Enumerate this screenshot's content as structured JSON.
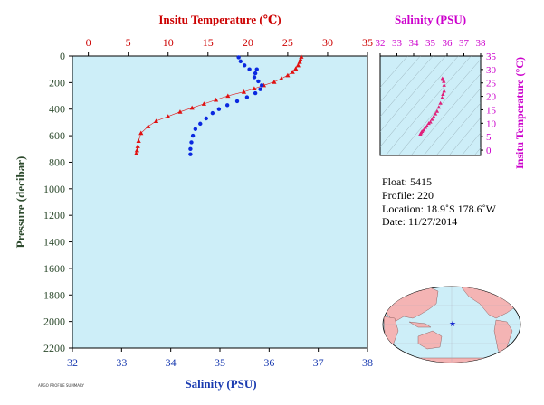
{
  "chart_data": [
    {
      "type": "scatter",
      "title": "",
      "top_axis": {
        "label": "Insitu Temperature (℃)",
        "lim": [
          -2,
          35
        ],
        "ticks": [
          0,
          5,
          10,
          15,
          20,
          25,
          30,
          35
        ],
        "color": "#cc0000"
      },
      "bottom_axis": {
        "label": "Salinity (PSU)",
        "lim": [
          32,
          38
        ],
        "ticks": [
          32,
          33,
          34,
          35,
          36,
          37,
          38
        ],
        "color": "#1a3bb0"
      },
      "y_axis": {
        "label": "Pressure (decibar)",
        "lim": [
          0,
          2200
        ],
        "inverted": true,
        "ticks": [
          0,
          200,
          400,
          600,
          800,
          1000,
          1200,
          1400,
          1600,
          1800,
          2000,
          2200
        ],
        "color": "#2d4a2d"
      },
      "background": "#cdeef8",
      "series": [
        {
          "x_axis": "top",
          "marker": "triangle",
          "color": "#e01010",
          "line": true,
          "x": [
            26.7,
            26.6,
            26.5,
            26.3,
            26.0,
            25.6,
            25.0,
            24.2,
            23.3,
            22.0,
            20.8,
            19.5,
            17.5,
            16.0,
            14.5,
            13.0,
            11.5,
            10.0,
            8.5,
            7.5,
            6.6,
            6.3,
            6.2,
            6.1,
            6.0
          ],
          "y": [
            5,
            25,
            45,
            70,
            95,
            120,
            145,
            170,
            195,
            220,
            245,
            270,
            300,
            330,
            360,
            390,
            420,
            455,
            490,
            530,
            580,
            640,
            680,
            710,
            735
          ]
        },
        {
          "x_axis": "bottom",
          "marker": "circle",
          "color": "#0a28e0",
          "line": false,
          "x": [
            35.38,
            35.42,
            35.5,
            35.6,
            35.75,
            35.72,
            35.7,
            35.78,
            35.85,
            35.82,
            35.72,
            35.55,
            35.35,
            35.15,
            34.98,
            34.85,
            34.72,
            34.6,
            34.5,
            34.45,
            34.42,
            34.4,
            34.4
          ],
          "y": [
            10,
            40,
            70,
            100,
            100,
            130,
            160,
            190,
            220,
            250,
            280,
            310,
            340,
            370,
            400,
            430,
            470,
            510,
            550,
            600,
            650,
            700,
            740
          ]
        }
      ]
    },
    {
      "type": "scatter",
      "title": "",
      "x_axis": {
        "label": "Salinity (PSU)",
        "lim": [
          32,
          38
        ],
        "ticks": [
          32,
          33,
          34,
          35,
          36,
          37,
          38
        ],
        "color": "#cc00cc"
      },
      "y_axis": {
        "label": "Insitu Temperature (°C)",
        "lim": [
          -2,
          35
        ],
        "ticks": [
          0,
          5,
          10,
          15,
          20,
          25,
          30,
          35
        ],
        "color": "#cc00cc"
      },
      "background": "#cdeef8",
      "series": [
        {
          "marker": "triangle",
          "color": "#e0207a",
          "x": [
            35.72,
            35.75,
            35.8,
            35.82,
            35.82,
            35.75,
            35.7,
            35.6,
            35.5,
            35.4,
            35.3,
            35.2,
            35.1,
            35.0,
            34.9,
            34.8,
            34.7,
            34.6,
            34.5,
            34.45,
            34.4
          ],
          "y": [
            26.7,
            26.3,
            25.6,
            24.2,
            22.0,
            20.8,
            19.5,
            17.5,
            16.0,
            14.5,
            13.5,
            12.5,
            11.5,
            10.5,
            10.0,
            9.0,
            8.5,
            7.5,
            7.0,
            6.5,
            6.0
          ]
        }
      ]
    }
  ],
  "float_info": {
    "float": "Float:  5415",
    "profile": "Profile:  220",
    "location": "Location:  18.9˚S  178.6˚W",
    "date": "Date:  11/27/2014"
  },
  "footnote": "ARGO PROFILE SUMMARY"
}
